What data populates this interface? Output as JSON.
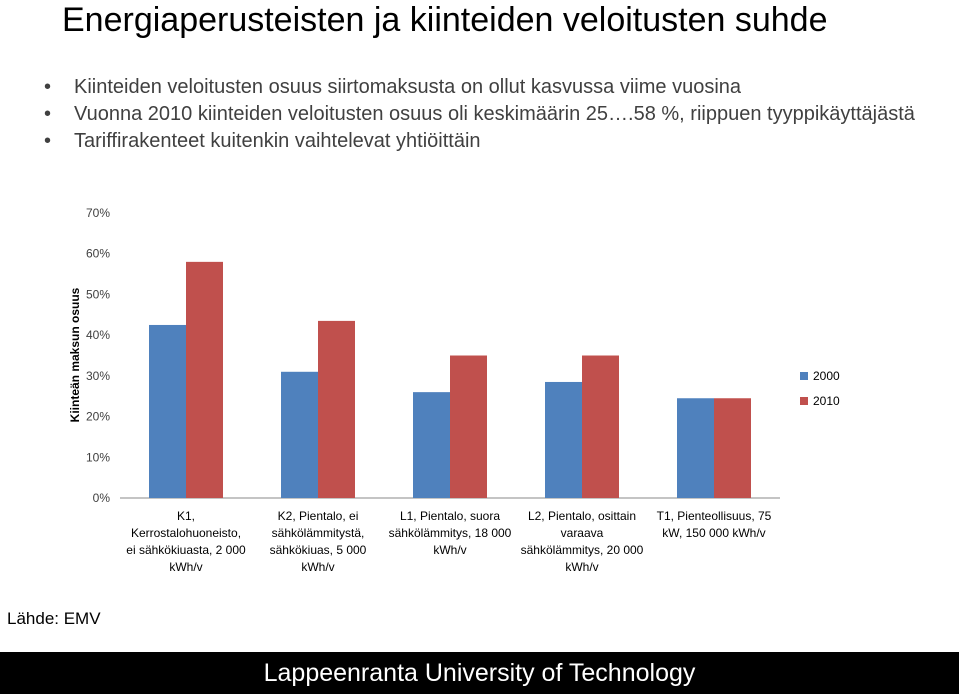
{
  "slide": {
    "title": "Energiaperusteisten ja kiinteiden veloitusten suhde",
    "bullets": [
      "Kiinteiden veloitusten osuus siirtomaksusta on ollut kasvussa viime vuosina",
      "Vuonna 2010 kiinteiden veloitusten osuus oli keskimäärin 25….58 %, riippuen tyyppikäyttäjästä",
      "Tariffirakenteet kuitenkin vaihtelevat yhtiöittäin"
    ],
    "source": "Lähde: EMV",
    "footer": "Lappeenranta University of Technology"
  },
  "chart_data": {
    "type": "bar",
    "title": "",
    "xlabel": "",
    "ylabel": "Kiinteän maksun osuus",
    "ylim": [
      0,
      0.7
    ],
    "y_ticks": [
      "0%",
      "10%",
      "20%",
      "30%",
      "40%",
      "50%",
      "60%",
      "70%"
    ],
    "grid": false,
    "legend_position": "right",
    "categories": [
      [
        "K1,",
        "Kerrostalohuoneisto,",
        "ei sähkökiuasta, 2 000",
        "kWh/v"
      ],
      [
        "K2, Pientalo, ei",
        "sähkölämmitystä,",
        "sähkökiuas, 5 000",
        "kWh/v"
      ],
      [
        "L1, Pientalo, suora",
        "sähkölämmitys, 18 000",
        "kWh/v"
      ],
      [
        "L2, Pientalo, osittain",
        "varaava",
        "sähkölämmitys, 20 000",
        "kWh/v"
      ],
      [
        "T1, Pienteollisuus, 75",
        "kW, 150 000 kWh/v"
      ]
    ],
    "series": [
      {
        "name": "2000",
        "color": "#4F81BD",
        "values": [
          0.425,
          0.31,
          0.26,
          0.285,
          0.245
        ]
      },
      {
        "name": "2010",
        "color": "#C0504D",
        "values": [
          0.58,
          0.435,
          0.35,
          0.35,
          0.245
        ]
      }
    ]
  }
}
